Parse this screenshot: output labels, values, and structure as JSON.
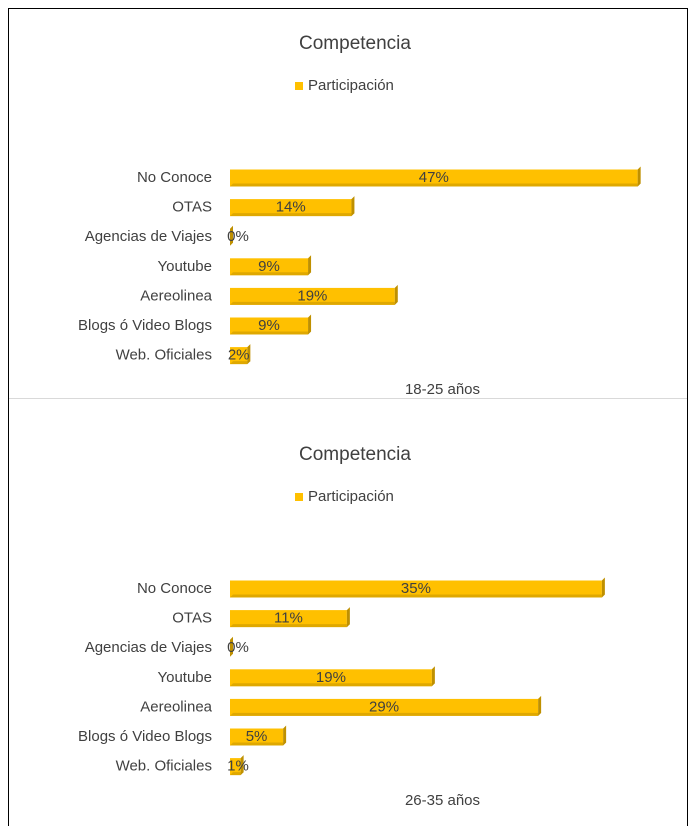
{
  "chart_data": [
    {
      "type": "bar",
      "orientation": "horizontal",
      "title": "Competencia",
      "x_label": "18-25 años",
      "categories": [
        "No Conoce",
        "OTAS",
        "Agencias de Viajes",
        "Youtube",
        "Aereolinea",
        "Blogs ó Video Blogs",
        "Web. Oficiales"
      ],
      "series": [
        {
          "name": "Participación",
          "color": "#ffc000",
          "values": [
            47,
            14,
            0,
            9,
            19,
            9,
            2
          ],
          "value_labels": [
            "47%",
            "14%",
            "0%",
            "9%",
            "19%",
            "9%",
            "2%"
          ]
        }
      ],
      "xlim": [
        0,
        49
      ]
    },
    {
      "type": "bar",
      "orientation": "horizontal",
      "title": "Competencia",
      "x_label": "26-35 años",
      "categories": [
        "No Conoce",
        "OTAS",
        "Agencias de Viajes",
        "Youtube",
        "Aereolinea",
        "Blogs ó Video Blogs",
        "Web. Oficiales"
      ],
      "series": [
        {
          "name": "Participación",
          "color": "#ffc000",
          "values": [
            35,
            11,
            0,
            19,
            29,
            5,
            1
          ],
          "value_labels": [
            "35%",
            "11%",
            "0%",
            "19%",
            "29%",
            "5%",
            "1%"
          ]
        }
      ],
      "xlim": [
        0,
        40
      ]
    }
  ]
}
